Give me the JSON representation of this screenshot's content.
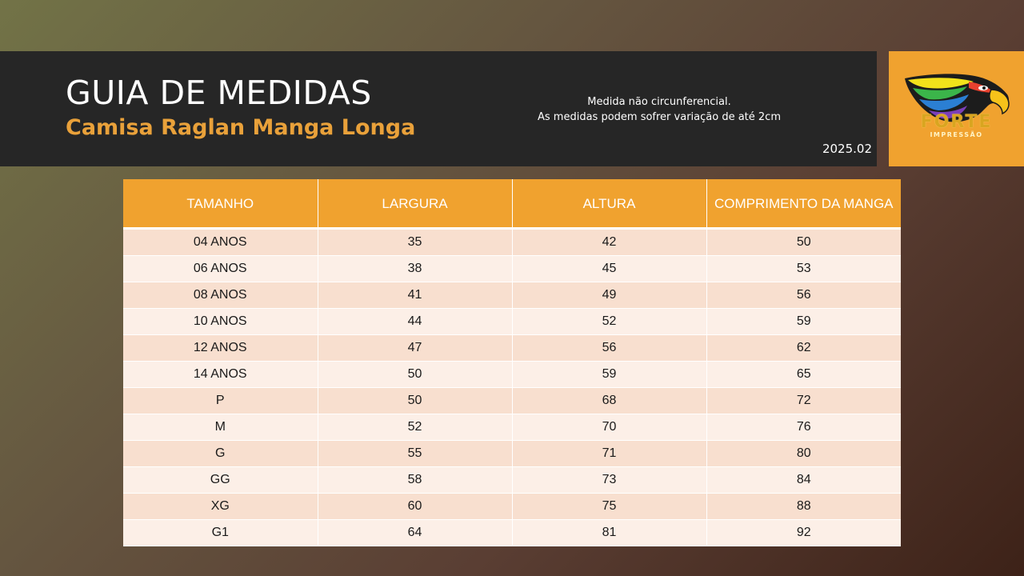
{
  "header": {
    "title": "GUIA DE MEDIDAS",
    "subtitle": "Camisa Raglan Manga Longa",
    "note_line_1": "Medida não circunferencial.",
    "note_line_2": "As medidas podem sofrer variação de até 2cm",
    "version": "2025.02"
  },
  "logo": {
    "icon": "eagle-icon",
    "brand_text": "FORTE",
    "brand_subtext": "IMPRESSÃO"
  },
  "colors": {
    "accent": "#f0a22f",
    "header_bg": "#262626",
    "subtitle": "#e9a13a",
    "row_odd": "#f8dfcf",
    "row_even": "#fcefe7"
  },
  "table": {
    "columns": [
      "TAMANHO",
      "LARGURA",
      "ALTURA",
      "COMPRIMENTO DA MANGA"
    ],
    "rows": [
      [
        "04 ANOS",
        "35",
        "42",
        "50"
      ],
      [
        "06 ANOS",
        "38",
        "45",
        "53"
      ],
      [
        "08 ANOS",
        "41",
        "49",
        "56"
      ],
      [
        "10 ANOS",
        "44",
        "52",
        "59"
      ],
      [
        "12 ANOS",
        "47",
        "56",
        "62"
      ],
      [
        "14 ANOS",
        "50",
        "59",
        "65"
      ],
      [
        "P",
        "50",
        "68",
        "72"
      ],
      [
        "M",
        "52",
        "70",
        "76"
      ],
      [
        "G",
        "55",
        "71",
        "80"
      ],
      [
        "GG",
        "58",
        "73",
        "84"
      ],
      [
        "XG",
        "60",
        "75",
        "88"
      ],
      [
        "G1",
        "64",
        "81",
        "92"
      ]
    ]
  }
}
